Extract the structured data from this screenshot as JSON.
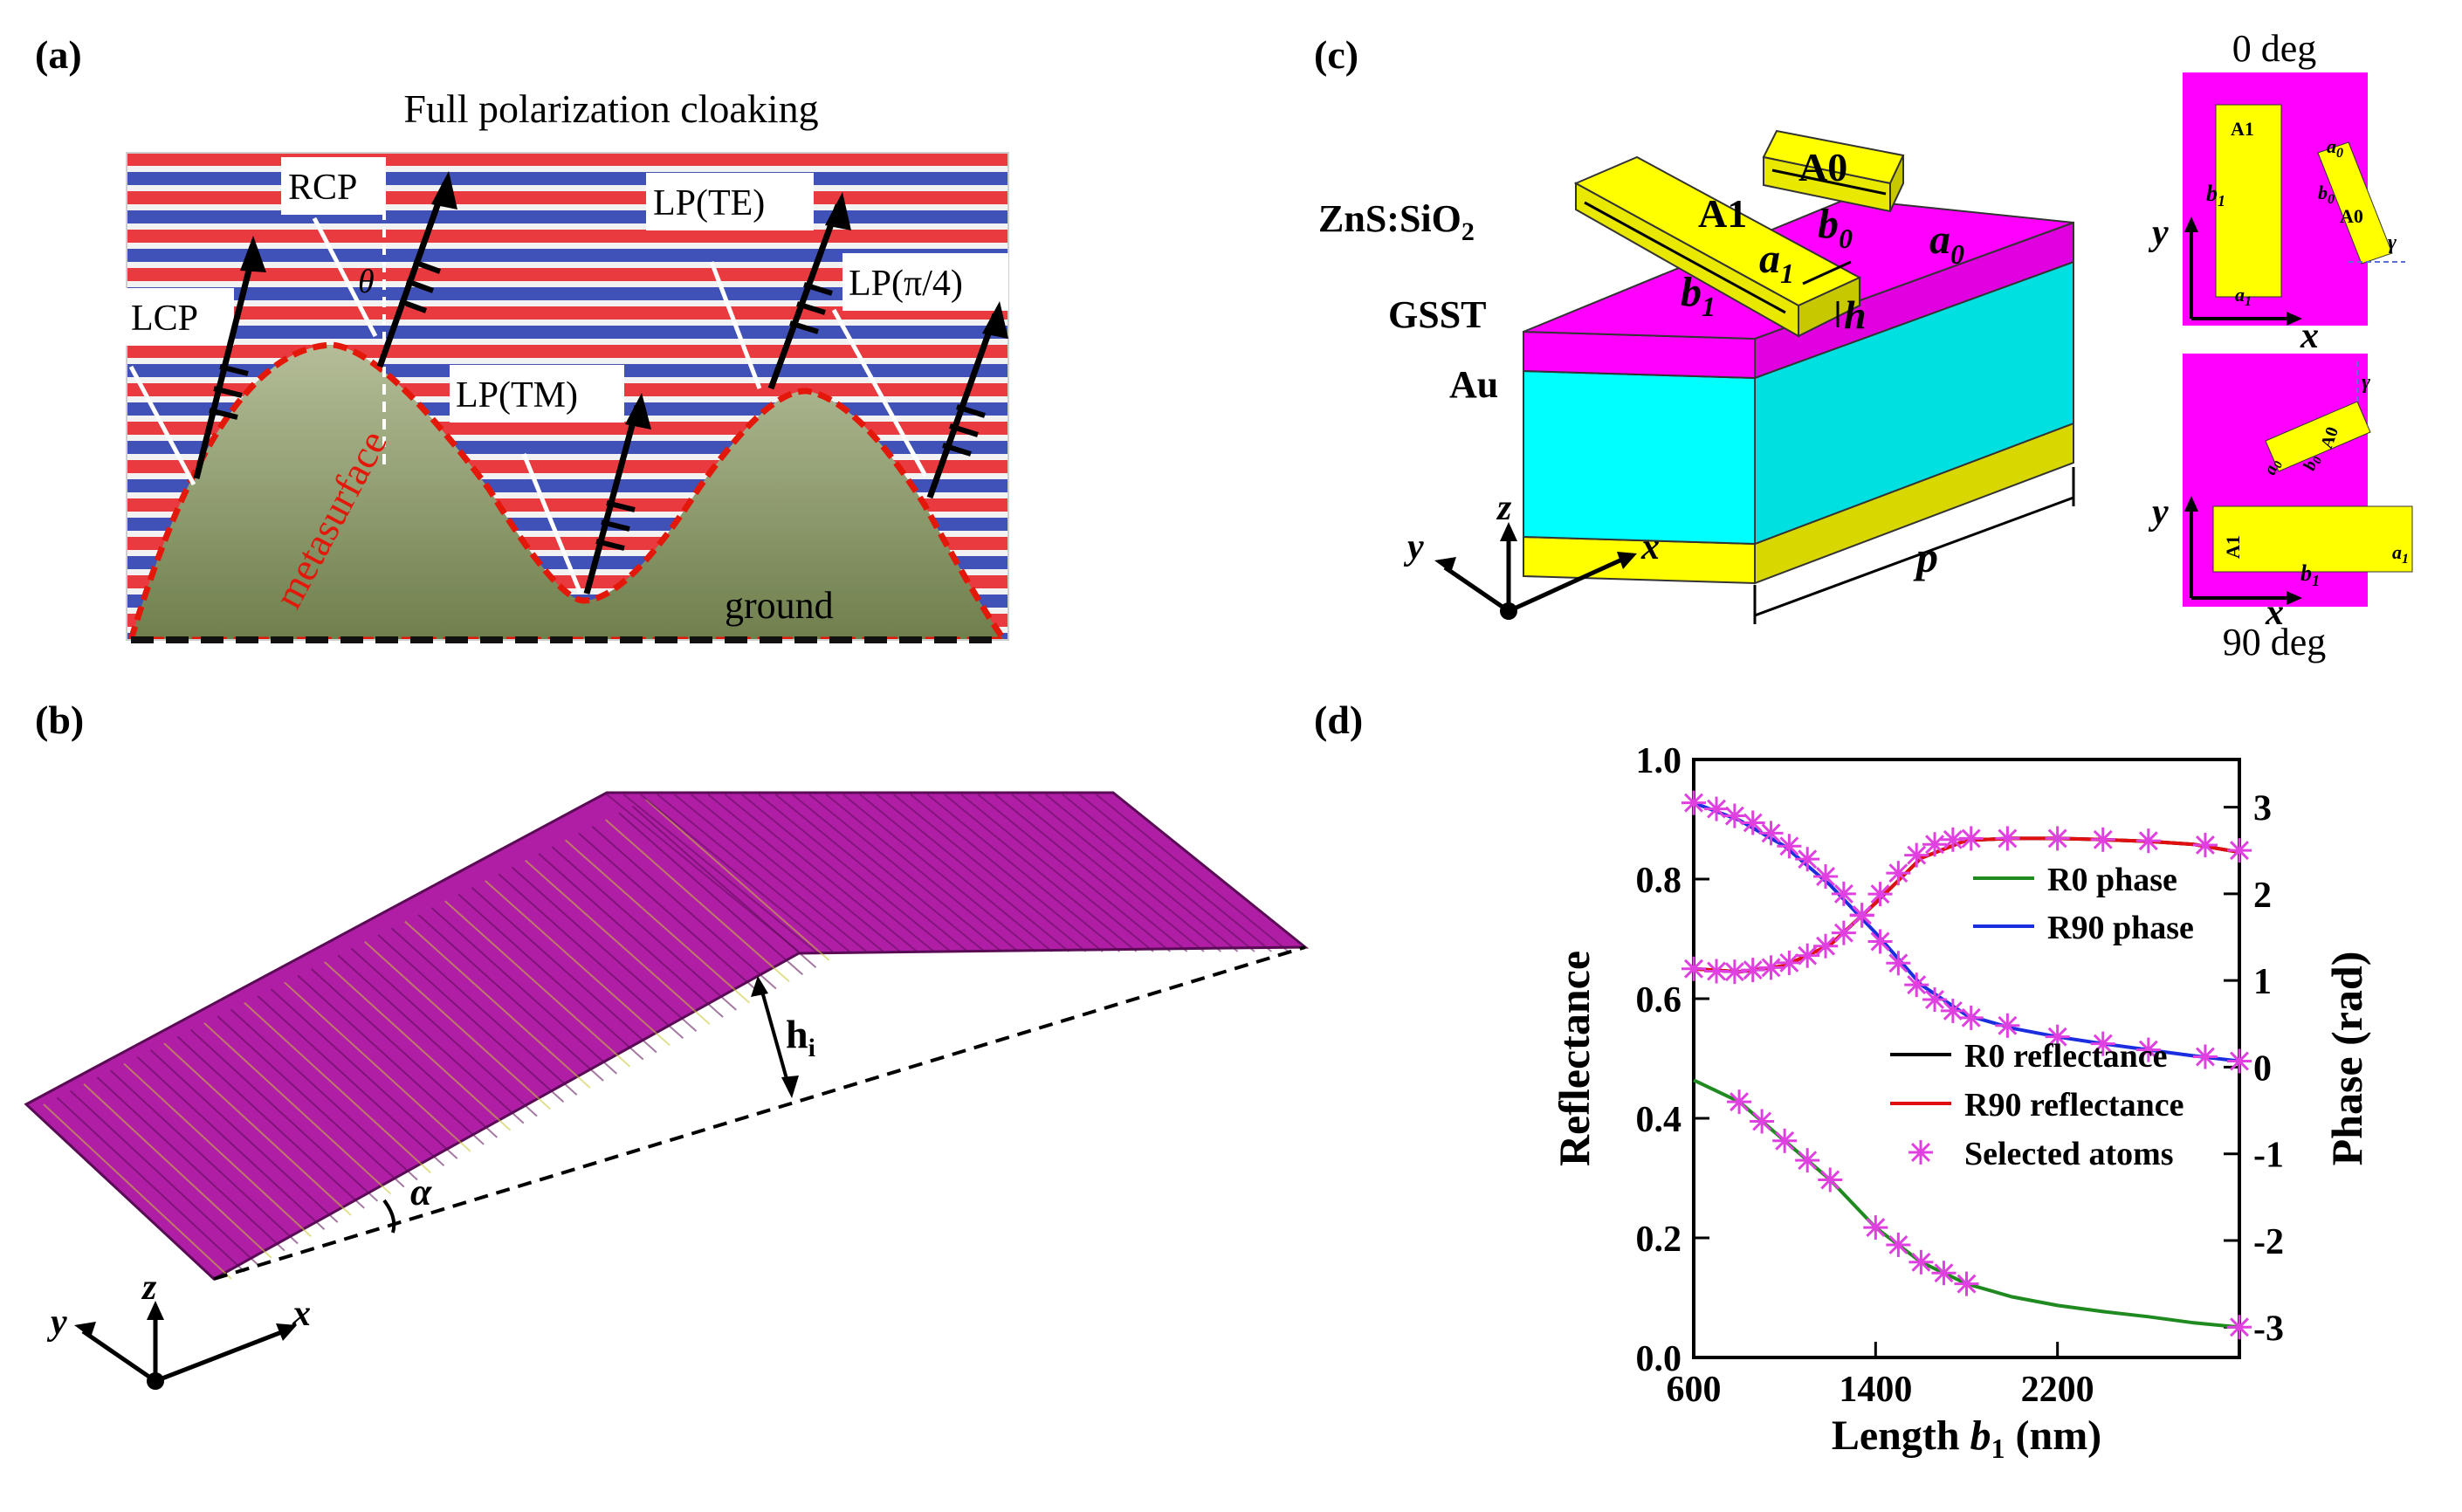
{
  "panel_a": {
    "label": "(a)",
    "title": "Full polarization cloaking",
    "beams": [
      "LCP",
      "RCP",
      "LP(TM)",
      "LP(TE)",
      "LP(π/4)"
    ],
    "theta": "θ",
    "surface_label": "metasurface",
    "ground_label": "ground",
    "colors": {
      "surface_fill": "#a9b089",
      "surface_edge": "#e3170a",
      "wave_red": "#e8262b",
      "wave_blue": "#2c3fb0"
    }
  },
  "panel_b": {
    "label": "(b)",
    "height_label": "h",
    "height_sub": "i",
    "angle_label": "α",
    "axes": {
      "x": "x",
      "y": "y",
      "z": "z"
    },
    "colors": {
      "metasurface": "#b01ea6"
    }
  },
  "panel_c": {
    "label": "(c)",
    "layers": {
      "top": "ZnS:SiO",
      "top_sub": "2",
      "middle": "GSST",
      "bottom": "Au"
    },
    "atoms": {
      "a1_name": "A1",
      "a0_name": "A0",
      "a1_width": "a",
      "a1_width_sub": "1",
      "a1_length": "b",
      "a1_length_sub": "1",
      "a0_width": "a",
      "a0_width_sub": "0",
      "a0_length": "b",
      "a0_length_sub": "0",
      "height": "h"
    },
    "period_label": "p",
    "axes": {
      "x": "x",
      "y": "y",
      "z": "z"
    },
    "inset_top": {
      "title": "0 deg",
      "a1": "A1",
      "b1": "b",
      "b1_sub": "1",
      "a1w": "a",
      "a1w_sub": "1",
      "a0": "A0",
      "a0w": "a",
      "a0w_sub": "0",
      "b0": "b",
      "b0_sub": "0",
      "gamma": "γ",
      "x": "x",
      "y": "y"
    },
    "inset_bottom": {
      "title": "90 deg",
      "a1": "A1",
      "b1": "b",
      "b1_sub": "1",
      "a1w": "a",
      "a1w_sub": "1",
      "a0": "A0",
      "a0w": "a",
      "a0w_sub": "0",
      "b0": "b",
      "b0_sub": "0",
      "gamma": "γ",
      "x": "x",
      "y": "y"
    },
    "colors": {
      "zns": "#ff00ff",
      "gsst": "#00ffff",
      "au": "#ffff00",
      "atom": "#e8e800"
    }
  },
  "panel_d": {
    "label": "(d)"
  },
  "chart_data": {
    "type": "line",
    "title": "",
    "xlabel": "Length b",
    "xlabel_sub": "1",
    "xlabel_unit": " (nm)",
    "ylabel": "Reflectance",
    "y2label": "Phase (rad)",
    "xlim": [
      600,
      3000
    ],
    "ylim": [
      0.0,
      1.0
    ],
    "y2lim": [
      -3.35,
      3.55
    ],
    "x_ticks": [
      600,
      1400,
      2200
    ],
    "y_ticks": [
      "0.0",
      "0.2",
      "0.4",
      "0.6",
      "0.8",
      "1.0"
    ],
    "y_tick_values": [
      0.0,
      0.2,
      0.4,
      0.6,
      0.8,
      1.0
    ],
    "y2_ticks": [
      -3,
      -2,
      -1,
      0,
      1,
      2,
      3
    ],
    "legend_position": "right",
    "series": [
      {
        "name": "R0 phase",
        "axis": "right",
        "color": "#1f8a1f",
        "x": [
          600,
          800,
          1000,
          1200,
          1400,
          1600,
          1800,
          2000,
          2200,
          2400,
          2600,
          2800,
          3000
        ],
        "y": [
          -0.15,
          -0.4,
          -0.85,
          -1.3,
          -1.85,
          -2.25,
          -2.5,
          -2.65,
          -2.75,
          -2.82,
          -2.88,
          -2.95,
          -3.0
        ]
      },
      {
        "name": "R90 phase",
        "axis": "right",
        "color": "#1a2ee0",
        "x": [
          600,
          800,
          1000,
          1200,
          1400,
          1600,
          1800,
          2000,
          2200,
          2400,
          2600,
          2800,
          3000
        ],
        "y": [
          3.05,
          2.85,
          2.55,
          2.1,
          1.55,
          0.95,
          0.6,
          0.45,
          0.35,
          0.27,
          0.2,
          0.13,
          0.07
        ]
      },
      {
        "name": "R0 reflectance",
        "axis": "left",
        "color": "#000000",
        "x": [
          600,
          800,
          1000,
          1200,
          1400,
          1600,
          1800,
          2000,
          2200,
          2400,
          2600,
          2800,
          3000
        ],
        "y": [
          0.65,
          0.645,
          0.655,
          0.69,
          0.76,
          0.835,
          0.865,
          0.868,
          0.868,
          0.866,
          0.863,
          0.858,
          0.845
        ]
      },
      {
        "name": "R90 reflectance",
        "axis": "left",
        "color": "#e01010",
        "x": [
          600,
          800,
          1000,
          1200,
          1400,
          1600,
          1800,
          2000,
          2200,
          2400,
          2600,
          2800,
          3000
        ],
        "y": [
          0.65,
          0.645,
          0.655,
          0.69,
          0.76,
          0.835,
          0.865,
          0.868,
          0.868,
          0.866,
          0.863,
          0.858,
          0.845
        ]
      },
      {
        "name": "Selected atoms",
        "axis": "both",
        "color": "#e040e0",
        "marker": "asterisk",
        "x": [
          600,
          700,
          780,
          860,
          940,
          1020,
          1100,
          1180,
          1260,
          1340,
          1420,
          1500,
          1580,
          1660,
          1740,
          1820,
          1980,
          2200,
          2400,
          2600,
          2850,
          3000
        ],
        "reflectance": [
          0.65,
          0.646,
          0.645,
          0.648,
          0.652,
          0.66,
          0.672,
          0.688,
          0.71,
          0.74,
          0.775,
          0.81,
          0.84,
          0.858,
          0.866,
          0.868,
          0.868,
          0.868,
          0.866,
          0.864,
          0.857,
          0.848
        ],
        "phase": [
          3.05,
          2.98,
          2.9,
          2.82,
          2.7,
          2.55,
          2.4,
          2.2,
          2.0,
          1.75,
          1.45,
          1.2,
          0.95,
          0.78,
          0.65,
          0.57,
          0.48,
          0.35,
          0.27,
          0.2,
          0.12,
          0.07
        ]
      }
    ]
  }
}
